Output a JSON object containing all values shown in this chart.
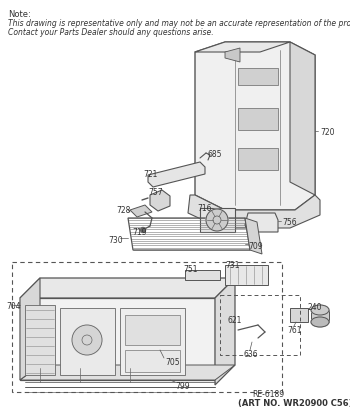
{
  "note_line1": "Note:",
  "note_line2": "This drawing is representative only and may not be an accurate representation of the product.",
  "note_line3": "Contact your Parts Dealer should any questions arise.",
  "footer_line1": "RE-6189",
  "footer_line2": "(ART NO. WR20900 C56)",
  "bg_color": "#ffffff",
  "text_color": "#333333",
  "line_color": "#555555",
  "dashed_color": "#555555",
  "fig_width": 3.5,
  "fig_height": 4.13,
  "dpi": 100
}
